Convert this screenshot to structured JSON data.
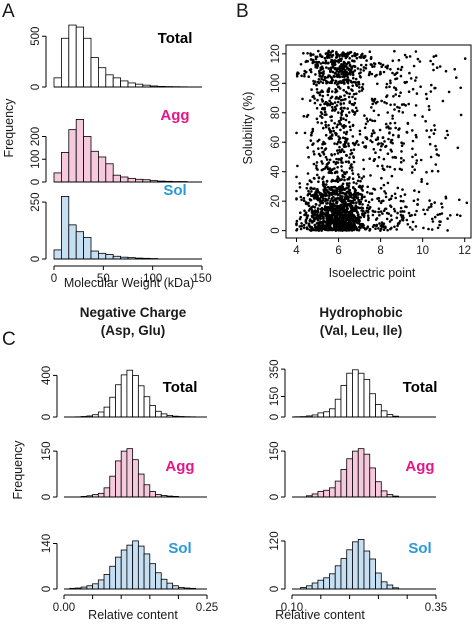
{
  "panels": {
    "A": "A",
    "B": "B",
    "C": "C"
  },
  "colors": {
    "total": "#ffffff",
    "agg": "#f7c9dc",
    "sol": "#c6dff3",
    "agg_text": "#e3178a",
    "sol_text": "#2a9ad6",
    "total_text": "#000000"
  },
  "chart_data": [
    {
      "id": "A",
      "type": "bar",
      "subtype": "histogram",
      "xlabel": "Molecular Weight  (kDa)",
      "ylabel": "Frequency",
      "xlim": [
        0,
        150
      ],
      "xticks": [
        "0",
        "50",
        "100",
        "150"
      ],
      "bin_width": 7.5,
      "bin_start": 0,
      "series": [
        {
          "name": "Total",
          "color": "#ffffff",
          "label_color": "#000000",
          "ylim": [
            0,
            650
          ],
          "yticks": [
            "0",
            "500"
          ],
          "values": [
            90,
            480,
            610,
            590,
            480,
            290,
            190,
            120,
            90,
            60,
            40,
            28,
            18,
            10,
            6,
            4,
            3,
            2
          ]
        },
        {
          "name": "Agg",
          "color": "#f7c9dc",
          "label_color": "#e3178a",
          "ylim": [
            0,
            290
          ],
          "yticks": [
            "0",
            "100",
            "200"
          ],
          "values": [
            40,
            130,
            230,
            275,
            200,
            135,
            110,
            80,
            30,
            22,
            16,
            12,
            10,
            6,
            4,
            3,
            2,
            2
          ]
        },
        {
          "name": "Sol",
          "color": "#c6dff3",
          "label_color": "#2a9ad6",
          "ylim": [
            0,
            290
          ],
          "yticks": [
            "0",
            "250"
          ],
          "values": [
            40,
            275,
            150,
            120,
            95,
            35,
            25,
            20,
            12,
            8,
            6,
            4,
            3,
            2
          ]
        }
      ]
    },
    {
      "id": "B",
      "type": "scatter",
      "xlabel": "Isoelectric point",
      "ylabel": "Solubility  (%)",
      "xlim": [
        3.5,
        12.3
      ],
      "ylim": [
        -5,
        126
      ],
      "xticks": [
        4,
        6,
        8,
        10,
        12
      ],
      "yticks": [
        0,
        20,
        40,
        60,
        80,
        100,
        120
      ],
      "n_points": 2200
    },
    {
      "id": "C1",
      "type": "bar",
      "subtype": "histogram",
      "title_line1": "Negative Charge",
      "title_line2": "(Asp, Glu)",
      "xlabel": "Relative content",
      "ylabel": "Frequency",
      "xlim": [
        0.0,
        0.25
      ],
      "xticks": [
        "0.00",
        "0.25"
      ],
      "bin_start": 0.0,
      "bin_width": 0.01,
      "series": [
        {
          "name": "Total",
          "color": "#ffffff",
          "label_color": "#000000",
          "ylim": [
            0,
            500
          ],
          "yticks": [
            "0",
            "400"
          ],
          "values": [
            0,
            0,
            2,
            5,
            10,
            22,
            48,
            95,
            190,
            310,
            405,
            450,
            400,
            300,
            195,
            110,
            55,
            30,
            15,
            8,
            5,
            3,
            2
          ]
        },
        {
          "name": "Agg",
          "color": "#f7c9dc",
          "label_color": "#e3178a",
          "ylim": [
            0,
            170
          ],
          "yticks": [
            "0",
            "150"
          ],
          "values": [
            0,
            0,
            0,
            2,
            4,
            8,
            12,
            30,
            68,
            118,
            150,
            158,
            122,
            75,
            40,
            18,
            8,
            5,
            3,
            2
          ]
        },
        {
          "name": "Sol",
          "color": "#c6dff3",
          "label_color": "#2a9ad6",
          "ylim": [
            0,
            160
          ],
          "yticks": [
            "0",
            "140"
          ],
          "values": [
            0,
            2,
            3,
            6,
            10,
            16,
            28,
            45,
            70,
            98,
            120,
            135,
            148,
            132,
            108,
            78,
            50,
            30,
            18,
            10,
            5,
            3,
            2
          ]
        }
      ]
    },
    {
      "id": "C2",
      "type": "bar",
      "subtype": "histogram",
      "title_line1": "Hydrophobic",
      "title_line2": "(Val, Leu, Ile)",
      "xlabel": "Relative content",
      "ylabel": "",
      "xlim": [
        0.1,
        0.35
      ],
      "xticks": [
        "0.10",
        "0.35"
      ],
      "bin_start": 0.105,
      "bin_width": 0.01,
      "series": [
        {
          "name": "Total",
          "color": "#ffffff",
          "label_color": "#000000",
          "ylim": [
            0,
            380
          ],
          "yticks": [
            "0",
            "150",
            "350"
          ],
          "values": [
            2,
            3,
            8,
            15,
            30,
            38,
            60,
            130,
            230,
            320,
            345,
            320,
            275,
            170,
            92,
            45,
            18,
            6
          ]
        },
        {
          "name": "Agg",
          "color": "#f7c9dc",
          "label_color": "#e3178a",
          "ylim": [
            0,
            170
          ],
          "yticks": [
            "0",
            "150"
          ],
          "values": [
            0,
            0,
            4,
            10,
            18,
            22,
            30,
            52,
            90,
            125,
            150,
            158,
            140,
            95,
            50,
            20,
            8,
            3
          ]
        },
        {
          "name": "Sol",
          "color": "#c6dff3",
          "label_color": "#2a9ad6",
          "ylim": [
            0,
            130
          ],
          "yticks": [
            "0",
            "120"
          ],
          "values": [
            0,
            4,
            8,
            15,
            22,
            28,
            38,
            58,
            76,
            98,
            118,
            124,
            95,
            75,
            40,
            18,
            10,
            3
          ]
        }
      ]
    }
  ]
}
